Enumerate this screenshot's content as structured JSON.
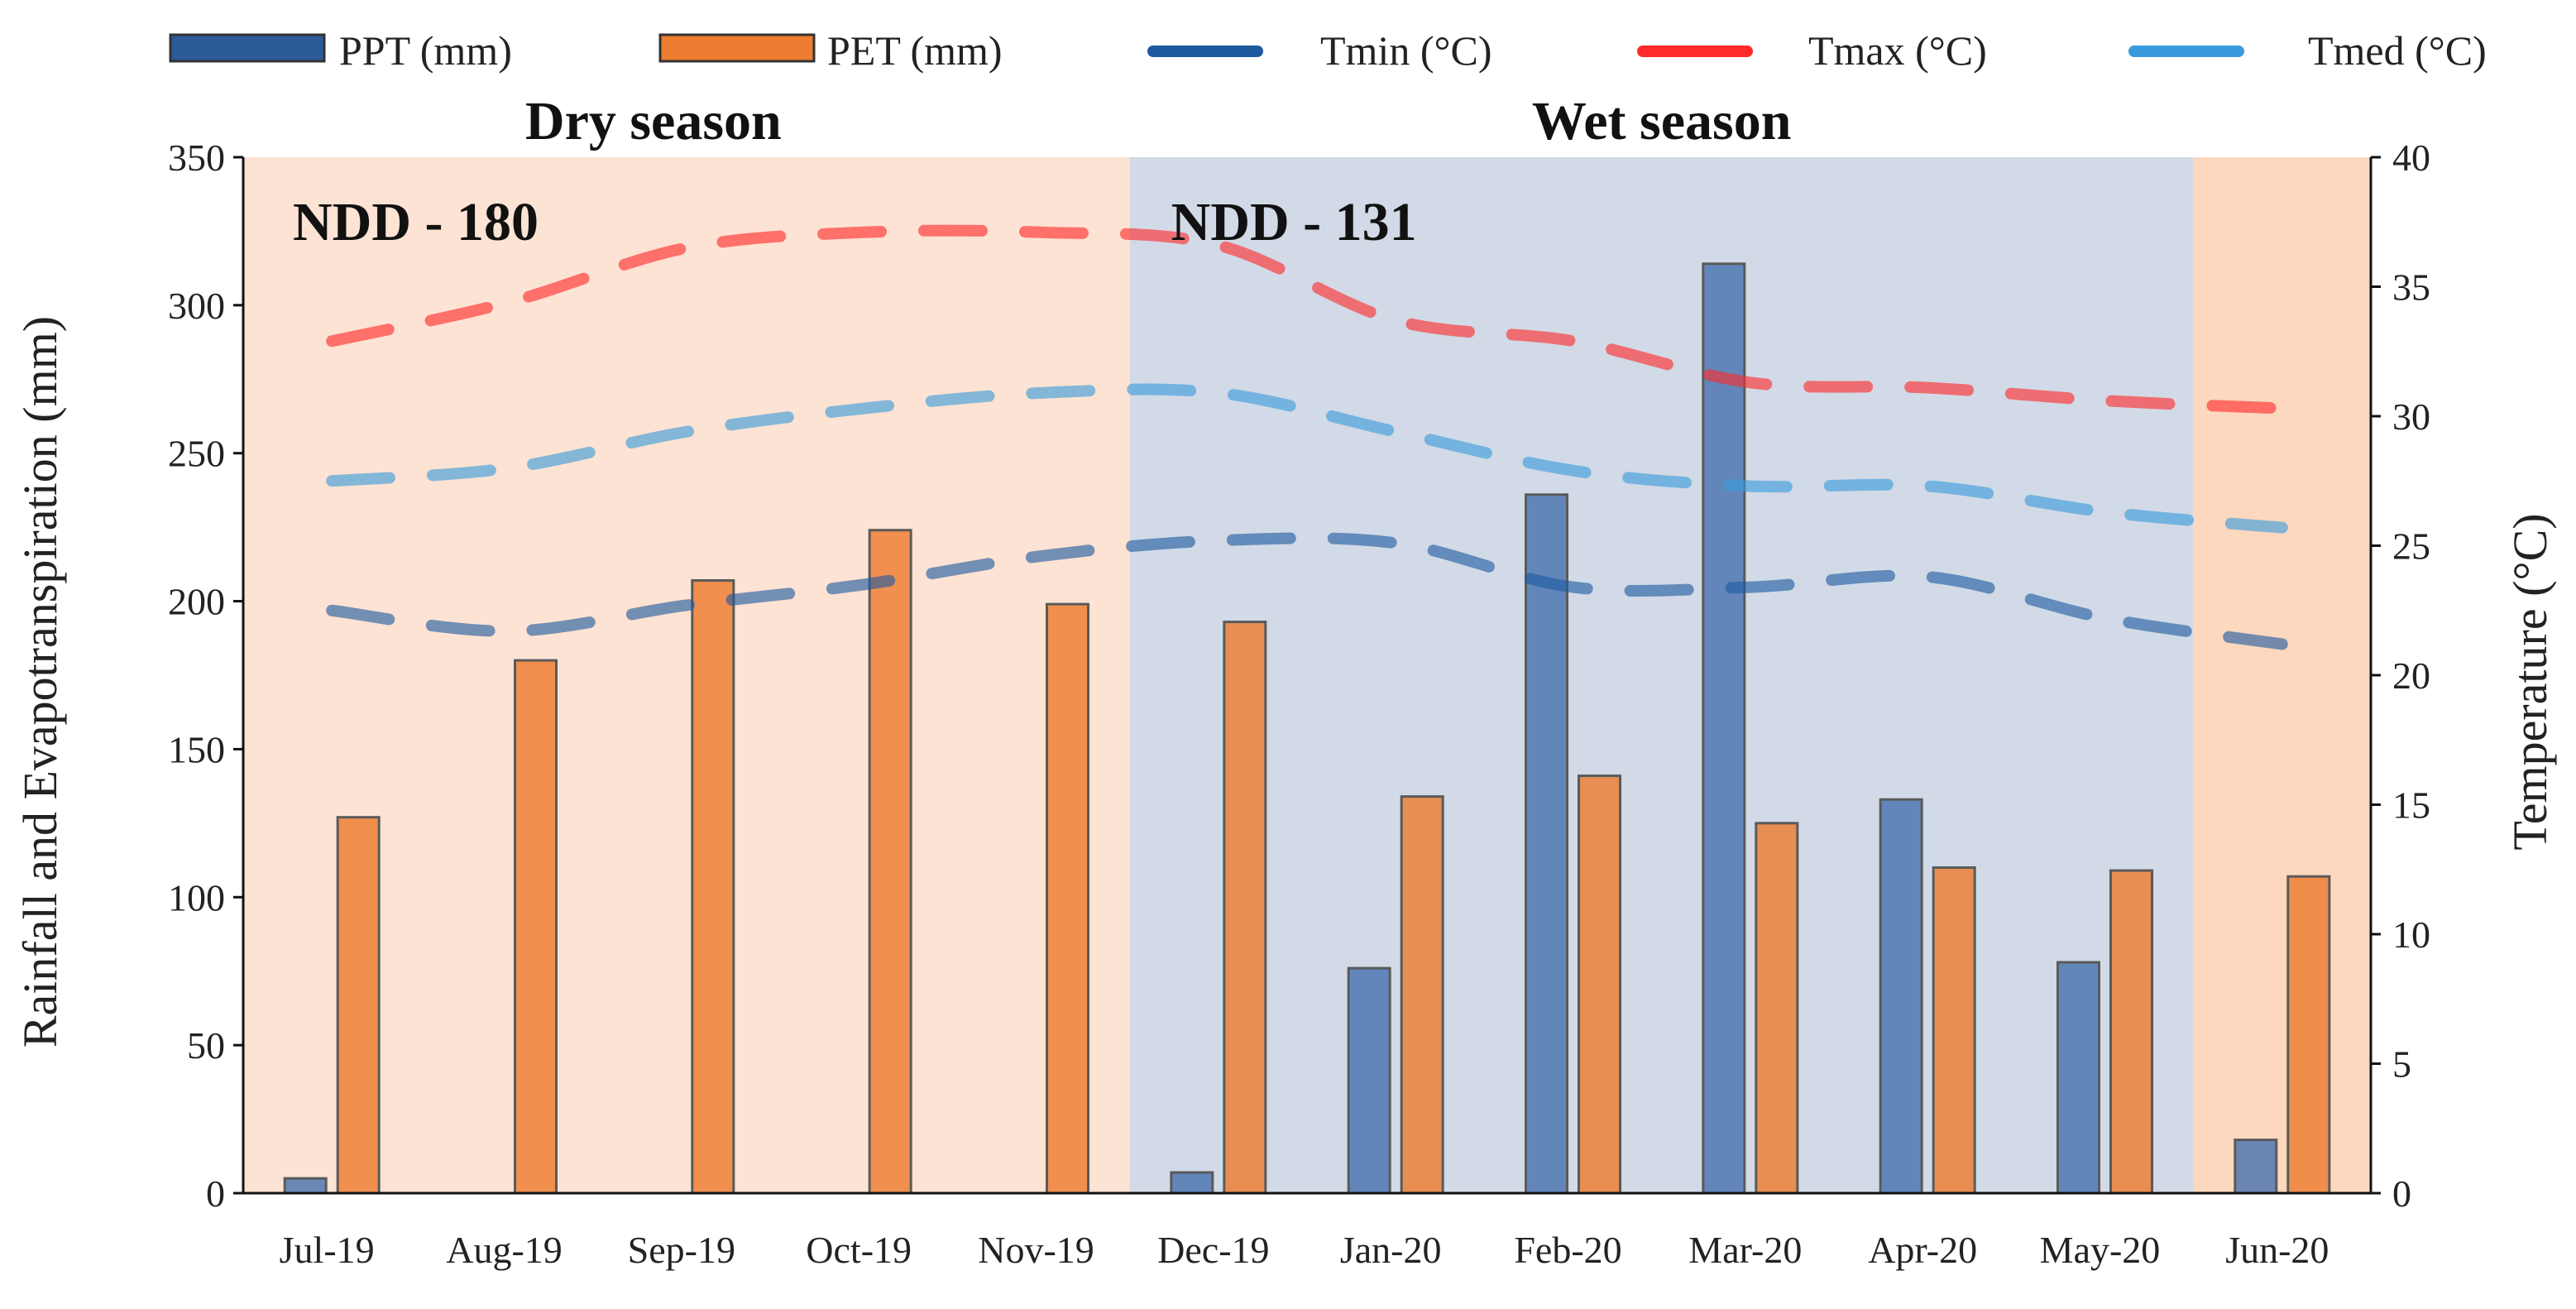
{
  "chart_data": {
    "type": "bar",
    "title": "",
    "categories": [
      "Jul-19",
      "Aug-19",
      "Sep-19",
      "Oct-19",
      "Nov-19",
      "Dec-19",
      "Jan-20",
      "Feb-20",
      "Mar-20",
      "Apr-20",
      "May-20",
      "Jun-20"
    ],
    "ylabel": "Rainfall and Evapotranspiration (mm)",
    "y2label": "Temperature (°C)",
    "ylim": [
      0,
      350
    ],
    "y2lim": [
      0,
      40
    ],
    "yticks": [
      "0",
      "50",
      "100",
      "150",
      "200",
      "250",
      "300",
      "350"
    ],
    "y2ticks": [
      "0",
      "5",
      "10",
      "15",
      "20",
      "25",
      "30",
      "35",
      "40"
    ],
    "bar_series": [
      {
        "name": "PPT (mm)",
        "color": "#4a73b0",
        "values": [
          5,
          0,
          0,
          0,
          0,
          7,
          76,
          236,
          314,
          133,
          78,
          18
        ]
      },
      {
        "name": "PET (mm)",
        "color": "#ed7d31",
        "values": [
          127,
          180,
          207,
          224,
          199,
          193,
          134,
          141,
          125,
          110,
          109,
          107
        ]
      }
    ],
    "line_series": [
      {
        "name": "Tmin (°C)",
        "color": "#1f5aa0",
        "dashed": true,
        "values": [
          22.5,
          21.7,
          22.7,
          23.5,
          24.6,
          25.2,
          25.1,
          23.4,
          23.4,
          23.8,
          22.2,
          21.2
        ]
      },
      {
        "name": "Tmax (°C)",
        "color": "#ff2a2a",
        "dashed": true,
        "values": [
          32.9,
          34.4,
          36.5,
          37.1,
          37.1,
          36.6,
          33.7,
          32.9,
          31.3,
          31.1,
          30.6,
          30.3
        ]
      },
      {
        "name": "Tmed (°C)",
        "color": "#3a9bdc",
        "dashed": true,
        "values": [
          27.5,
          28.0,
          29.4,
          30.3,
          30.9,
          30.9,
          29.4,
          27.9,
          27.3,
          27.3,
          26.3,
          25.7
        ]
      }
    ],
    "legend_position": "top",
    "regions": [
      {
        "label": "Dry season",
        "ndd": "NDD - 180",
        "from": 0,
        "to": 5,
        "color": "#fde3d3"
      },
      {
        "label": "Wet season",
        "ndd": "NDD - 131",
        "from": 5,
        "to": 11,
        "color": "#d1dae6"
      },
      {
        "label": "",
        "ndd": "",
        "from": 11,
        "to": 12,
        "color": "#fcd8bf"
      }
    ]
  }
}
